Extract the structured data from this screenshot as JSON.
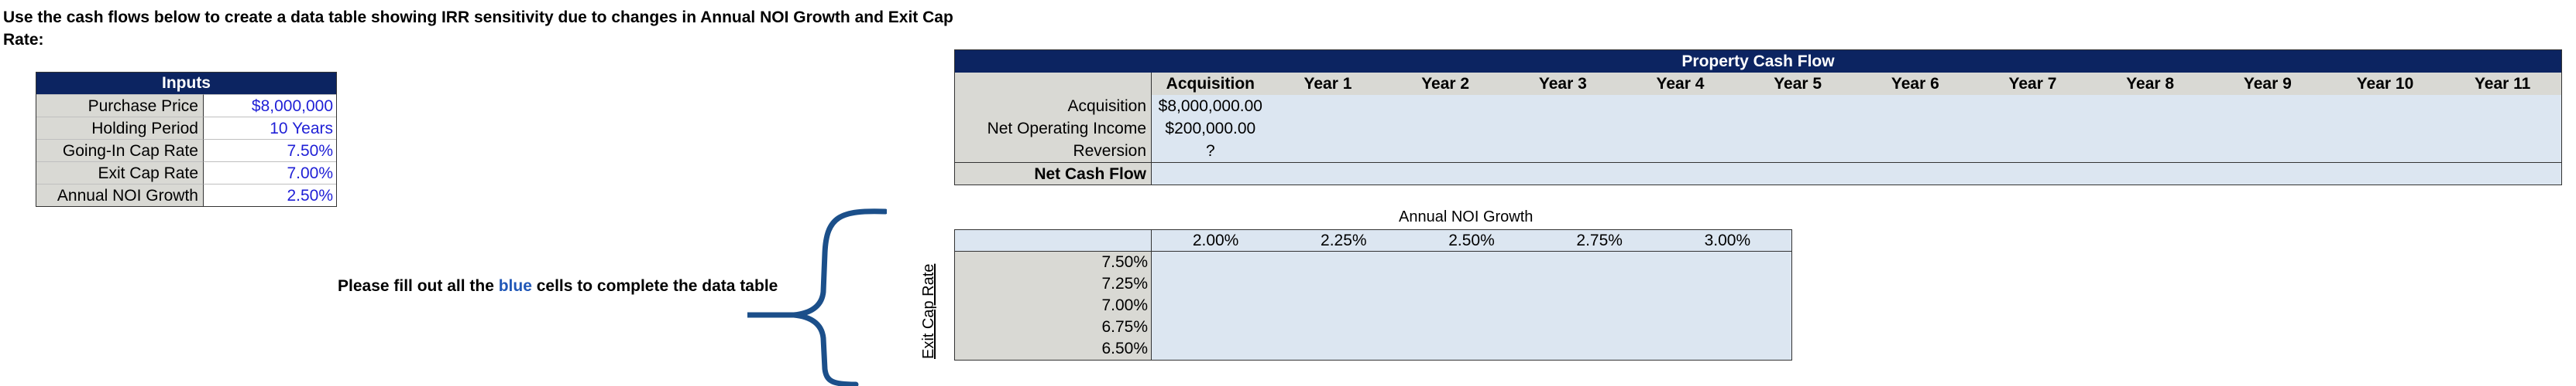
{
  "instructions": "Use the cash flows below to create a data table showing IRR sensitivity due to changes in Annual NOI Growth and Exit Cap Rate:",
  "inputs": {
    "title": "Inputs",
    "rows": [
      {
        "label": "Purchase Price",
        "value": "$8,000,000"
      },
      {
        "label": "Holding Period",
        "value": "10 Years"
      },
      {
        "label": "Going-In Cap Rate",
        "value": "7.50%"
      },
      {
        "label": "Exit Cap Rate",
        "value": "7.00%"
      },
      {
        "label": "Annual NOI Growth",
        "value": "2.50%"
      }
    ]
  },
  "cash_flow": {
    "title": "Property Cash Flow",
    "columns": [
      "Acquisition",
      "Year 1",
      "Year 2",
      "Year 3",
      "Year 4",
      "Year 5",
      "Year 6",
      "Year 7",
      "Year 8",
      "Year 9",
      "Year 10",
      "Year 11"
    ],
    "rows": [
      {
        "label": "Acquisition",
        "value": "$8,000,000.00"
      },
      {
        "label": "Net Operating Income",
        "value": "$200,000.00"
      },
      {
        "label": "Reversion",
        "value": "?"
      }
    ],
    "net_label": "Net Cash Flow"
  },
  "note": {
    "before": "Please fill out all the ",
    "blue_word": "blue",
    "after": " cells to complete the data table"
  },
  "sensitivity": {
    "col_title": "Annual NOI Growth",
    "row_title": "Exit Cap Rate",
    "col_values": [
      "2.00%",
      "2.25%",
      "2.50%",
      "2.75%",
      "3.00%"
    ],
    "row_values": [
      "7.50%",
      "7.25%",
      "7.00%",
      "6.75%",
      "6.50%"
    ]
  },
  "colors": {
    "header_navy": "#0c2461",
    "input_blue": "#1f1fd6",
    "fill_blue": "#dce6f1",
    "label_gray": "#d9d9d4",
    "brace": "#1b4f8a"
  }
}
